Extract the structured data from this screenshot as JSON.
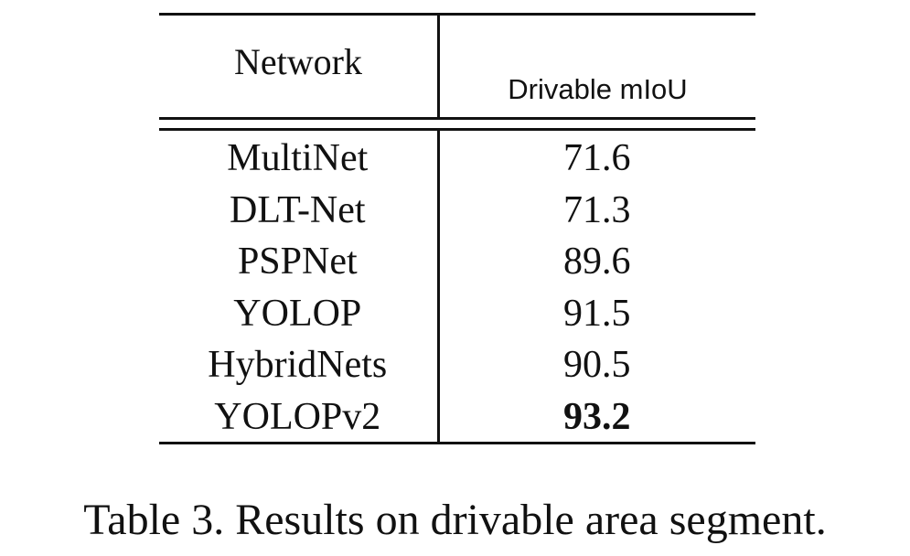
{
  "table": {
    "headers": {
      "network": "Network",
      "metric": "Drivable mIoU"
    },
    "rows": [
      {
        "network": "MultiNet",
        "miou": "71.6"
      },
      {
        "network": "DLT-Net",
        "miou": "71.3"
      },
      {
        "network": "PSPNet",
        "miou": "89.6"
      },
      {
        "network": "YOLOP",
        "miou": "91.5"
      },
      {
        "network": "HybridNets",
        "miou": "90.5"
      },
      {
        "network": "YOLOPv2",
        "miou": "93.2",
        "best": true
      }
    ]
  },
  "caption": "Table 3. Results on drivable area segment."
}
